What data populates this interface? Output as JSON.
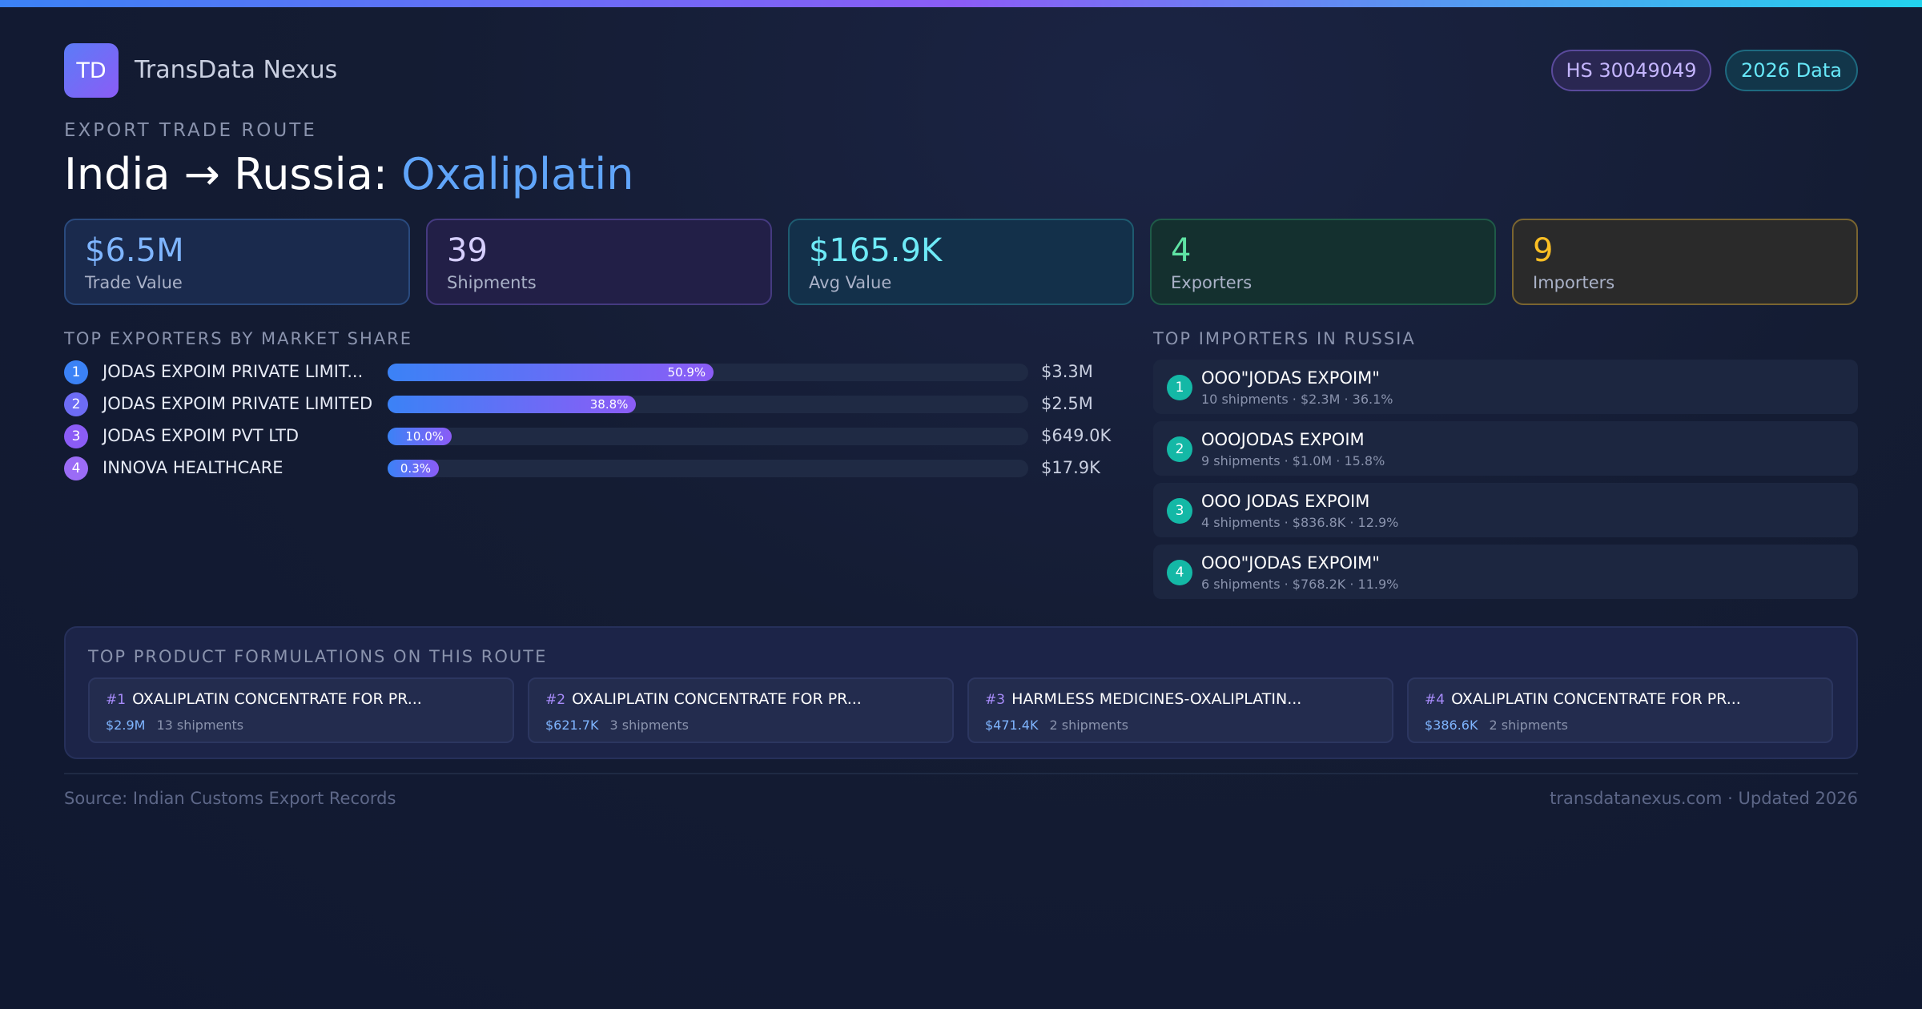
{
  "brand": {
    "logo_text": "TD",
    "name": "TransData Nexus"
  },
  "badges": {
    "hs": "HS 30049049",
    "year": "2026 Data"
  },
  "route": {
    "eyebrow": "EXPORT TRADE ROUTE",
    "title_prefix": "India → Russia: ",
    "product": "Oxaliplatin"
  },
  "stats": [
    {
      "value": "$6.5M",
      "label": "Trade Value"
    },
    {
      "value": "39",
      "label": "Shipments"
    },
    {
      "value": "$165.9K",
      "label": "Avg Value"
    },
    {
      "value": "4",
      "label": "Exporters"
    },
    {
      "value": "9",
      "label": "Importers"
    }
  ],
  "exporters": {
    "title": "TOP EXPORTERS BY MARKET SHARE",
    "items": [
      {
        "rank": "1",
        "name": "JODAS EXPOIM PRIVATE LIMIT...",
        "share": 50.9,
        "share_label": "50.9%",
        "value": "$3.3M"
      },
      {
        "rank": "2",
        "name": "JODAS EXPOIM PRIVATE LIMITED",
        "share": 38.8,
        "share_label": "38.8%",
        "value": "$2.5M"
      },
      {
        "rank": "3",
        "name": "JODAS EXPOIM PVT LTD",
        "share": 10.0,
        "share_label": "10.0%",
        "value": "$649.0K"
      },
      {
        "rank": "4",
        "name": "INNOVA HEALTHCARE",
        "share": 0.3,
        "share_label": "0.3%",
        "value": "$17.9K"
      }
    ],
    "rank_colors": [
      "#3b82f6",
      "#6d6cf5",
      "#8b5cf6",
      "#9b6cf6"
    ]
  },
  "importers": {
    "title": "TOP IMPORTERS IN RUSSIA",
    "items": [
      {
        "rank": "1",
        "name": "OOO\"JODAS EXPOIM\"",
        "meta": "10 shipments · $2.3M · 36.1%"
      },
      {
        "rank": "2",
        "name": "OOOJODAS EXPOIM",
        "meta": "9 shipments · $1.0M · 15.8%"
      },
      {
        "rank": "3",
        "name": "OOO JODAS EXPOIM",
        "meta": "4 shipments · $836.8K · 12.9%"
      },
      {
        "rank": "4",
        "name": "OOO\"JODAS EXPOIM\"",
        "meta": "6 shipments · $768.2K · 11.9%"
      }
    ]
  },
  "formulations": {
    "title": "TOP PRODUCT FORMULATIONS ON THIS ROUTE",
    "items": [
      {
        "num": "#1",
        "name": "OXALIPLATIN CONCENTRATE FOR PR...",
        "value": "$2.9M",
        "shipments": "13 shipments"
      },
      {
        "num": "#2",
        "name": "OXALIPLATIN CONCENTRATE FOR PR...",
        "value": "$621.7K",
        "shipments": "3 shipments"
      },
      {
        "num": "#3",
        "name": "HARMLESS MEDICINES-OXALIPLATIN...",
        "value": "$471.4K",
        "shipments": "2 shipments"
      },
      {
        "num": "#4",
        "name": "OXALIPLATIN CONCENTRATE FOR PR...",
        "value": "$386.6K",
        "shipments": "2 shipments"
      }
    ]
  },
  "footer": {
    "source": "Source: Indian Customs Export Records",
    "site": "transdatanexus.com · Updated 2026"
  }
}
